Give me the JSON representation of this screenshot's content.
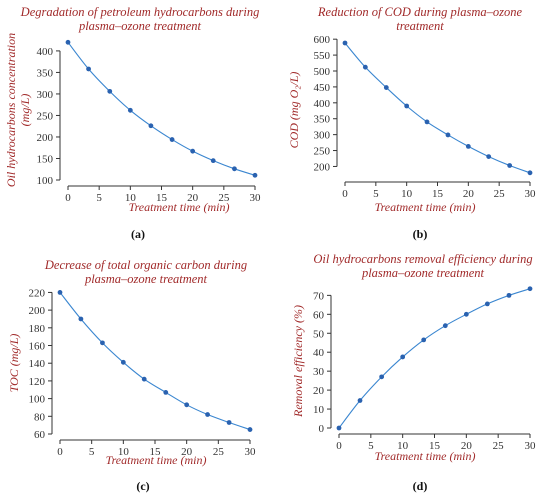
{
  "chart_data": [
    {
      "id": "a",
      "type": "line",
      "panel_label": "(a)",
      "title_lines": [
        "Degradation of petroleum hydrocarbons during",
        "plasma–ozone treatment"
      ],
      "xlabel": "Treatment time (min)",
      "ylabel_lines": [
        "Oil hydrocarbons concentration",
        "(mg/L)"
      ],
      "x": [
        0,
        3.3,
        6.7,
        10,
        13.3,
        16.7,
        20,
        23.3,
        26.7,
        30
      ],
      "y": [
        420,
        358,
        306,
        262,
        226,
        194,
        167,
        145,
        126,
        111
      ],
      "xlim": [
        0,
        30
      ],
      "ylim": [
        100,
        430
      ],
      "xticks": [
        0,
        5,
        10,
        15,
        20,
        25,
        30
      ],
      "yticks": [
        100,
        150,
        200,
        250,
        300,
        350,
        400
      ]
    },
    {
      "id": "b",
      "type": "line",
      "panel_label": "(b)",
      "title_lines": [
        "Reduction of COD during plasma–ozone",
        "treatment"
      ],
      "xlabel": "Treatment time (min)",
      "ylabel_lines": [
        "COD (mg O₂/L)"
      ],
      "x": [
        0,
        3.3,
        6.7,
        10,
        13.3,
        16.7,
        20,
        23.3,
        26.7,
        30
      ],
      "y": [
        588,
        512,
        448,
        390,
        340,
        299,
        263,
        231,
        203,
        180
      ],
      "xlim": [
        0,
        30
      ],
      "ylim": [
        170,
        610
      ],
      "xticks": [
        0,
        5,
        10,
        15,
        20,
        25,
        30
      ],
      "yticks": [
        200,
        250,
        300,
        350,
        400,
        450,
        500,
        550,
        600
      ]
    },
    {
      "id": "c",
      "type": "line",
      "panel_label": "(c)",
      "title_lines": [
        "Decrease of total organic carbon during",
        "plasma–ozone treatment"
      ],
      "xlabel": "Treatment time (min)",
      "ylabel_lines": [
        "TOC (mg/L)"
      ],
      "x": [
        0,
        3.3,
        6.7,
        10,
        13.3,
        16.7,
        20,
        23.3,
        26.7,
        30
      ],
      "y": [
        220,
        190,
        163,
        141,
        122,
        107,
        93,
        82,
        73,
        65
      ],
      "xlim": [
        0,
        30
      ],
      "ylim": [
        60,
        225
      ],
      "xticks": [
        0,
        5,
        10,
        15,
        20,
        25,
        30
      ],
      "yticks": [
        60,
        80,
        100,
        120,
        140,
        160,
        180,
        200,
        220
      ]
    },
    {
      "id": "d",
      "type": "line",
      "panel_label": "(d)",
      "title_lines": [
        "Oil hydrocarbons removal efficiency during",
        "plasma–ozone treatment"
      ],
      "xlabel": "Treatment time (min)",
      "ylabel_lines": [
        "Removal efficiency (%)"
      ],
      "x": [
        0,
        3.3,
        6.7,
        10,
        13.3,
        16.7,
        20,
        23.3,
        26.7,
        30
      ],
      "y": [
        0,
        14.5,
        27,
        37.5,
        46.5,
        54,
        60,
        65.5,
        70,
        73.5
      ],
      "xlim": [
        0,
        30
      ],
      "ylim": [
        0,
        76
      ],
      "xticks": [
        0,
        5,
        10,
        15,
        20,
        25,
        30
      ],
      "yticks": [
        0,
        10,
        20,
        30,
        40,
        50,
        60,
        70
      ]
    }
  ]
}
